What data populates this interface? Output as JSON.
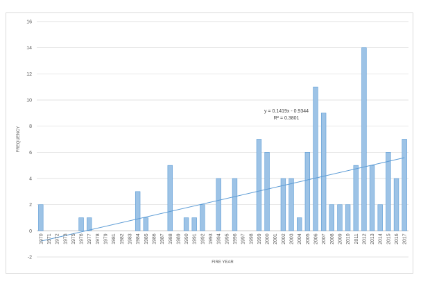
{
  "chart_data": {
    "type": "bar",
    "xlabel": "FIRE YEAR",
    "ylabel": "FREQUENCY",
    "ylim": [
      -2,
      16
    ],
    "y_ticks": [
      "-2",
      "0",
      "2",
      "4",
      "6",
      "8",
      "10",
      "12",
      "14",
      "16"
    ],
    "grid": "horizontal",
    "categories": [
      "1970",
      "1971",
      "1972",
      "1973",
      "1975",
      "1976",
      "1977",
      "1978",
      "1979",
      "1981",
      "1982",
      "1983",
      "1984",
      "1985",
      "1986",
      "1987",
      "1988",
      "1989",
      "1990",
      "1991",
      "1992",
      "1993",
      "1994",
      "1995",
      "1996",
      "1997",
      "1998",
      "1999",
      "2000",
      "2001",
      "2002",
      "2003",
      "2004",
      "2005",
      "2006",
      "2007",
      "2008",
      "2009",
      "2010",
      "2011",
      "2012",
      "2013",
      "2014",
      "2015",
      "2016",
      "2017"
    ],
    "values": [
      2,
      0,
      0,
      0,
      0,
      1,
      1,
      0,
      0,
      0,
      0,
      0,
      3,
      1,
      0,
      0,
      5,
      0,
      1,
      1,
      2,
      0,
      4,
      0,
      4,
      0,
      0,
      7,
      6,
      0,
      4,
      4,
      1,
      6,
      11,
      9,
      2,
      2,
      2,
      5,
      14,
      5,
      2,
      6,
      4,
      7
    ],
    "trendline": {
      "type": "linear",
      "slope": 0.1419,
      "intercept": -0.9344,
      "equation": "y = 0.1419x - 0.9344",
      "r_squared": "R² = 0.3801"
    },
    "colors": {
      "bar_fill": "#9dc3e6",
      "bar_stroke": "#5b9bd5",
      "trend": "#5b9bd5",
      "grid": "#d9d9d9",
      "axis": "#bfbfbf"
    }
  }
}
